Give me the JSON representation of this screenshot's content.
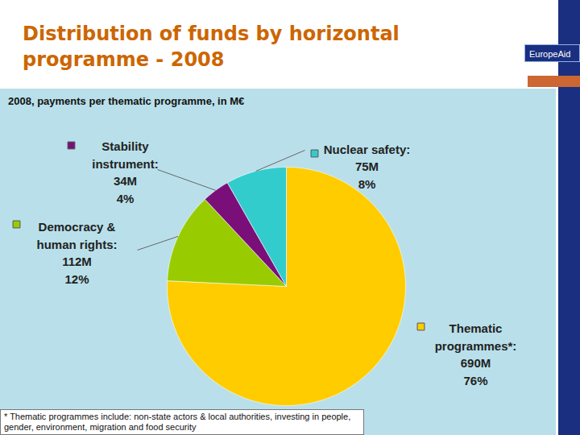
{
  "header": {
    "title": "Distribution of funds by horizontal programme - 2008",
    "brand": "EuropeAid"
  },
  "chart_data": {
    "type": "pie",
    "title": "2008, payments per thematic programme, in M€",
    "categories": [
      "Thematic programmes*:",
      "Democracy & human rights:",
      "Stability instrument:",
      "Nuclear safety:"
    ],
    "values": [
      690,
      112,
      34,
      75
    ],
    "value_labels": [
      "690M",
      "112M",
      "34M",
      "75M"
    ],
    "percents": [
      76,
      12,
      4,
      8
    ],
    "percent_labels": [
      "76%",
      "12%",
      "4%",
      "8%"
    ],
    "colors": [
      "#ffcc00",
      "#99cc00",
      "#7a0f7a",
      "#33cccc"
    ],
    "data_labels": true,
    "footnote": "* Thematic programmes include: non-state actors & local authorities, investing in people, gender, environment, migration and food security"
  }
}
